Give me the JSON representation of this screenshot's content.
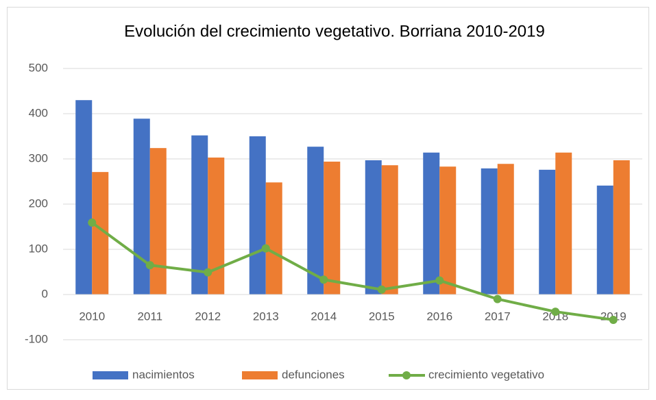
{
  "chart_data": {
    "type": "bar_line",
    "title": "Evolución del crecimiento vegetativo. Borriana 2010-2019",
    "categories": [
      "2010",
      "2011",
      "2012",
      "2013",
      "2014",
      "2015",
      "2016",
      "2017",
      "2018",
      "2019"
    ],
    "series": [
      {
        "name": "nacimientos",
        "type": "bar",
        "color": "#4472c4",
        "values": [
          430,
          389,
          352,
          350,
          327,
          297,
          314,
          279,
          276,
          241
        ]
      },
      {
        "name": "defunciones",
        "type": "bar",
        "color": "#ed7d31",
        "values": [
          271,
          324,
          303,
          248,
          294,
          286,
          283,
          289,
          314,
          297
        ]
      },
      {
        "name": "crecimiento vegetativo",
        "type": "line",
        "color": "#70ad47",
        "values": [
          159,
          65,
          49,
          102,
          33,
          11,
          31,
          -10,
          -38,
          -56
        ]
      }
    ],
    "ylim": [
      -100,
      500
    ],
    "yticks": [
      -100,
      0,
      100,
      200,
      300,
      400,
      500
    ],
    "grid": true,
    "legend": "bottom"
  }
}
